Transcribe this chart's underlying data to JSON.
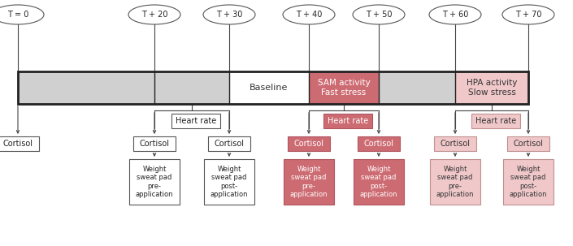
{
  "fig_width": 7.05,
  "fig_height": 3.03,
  "dpi": 100,
  "time_labels": [
    "T = 0",
    "T + 20",
    "T + 30",
    "T + 40",
    "T + 50",
    "T + 60",
    "T + 70"
  ],
  "color_gray_hatch_face": "#d0d0d0",
  "color_white": "#ffffff",
  "color_sam_dark": "#cd6b72",
  "color_sam_border": "#b05560",
  "color_hpa_light": "#f0c8ca",
  "color_hpa_border": "#c09090",
  "color_border_main": "#333333",
  "color_line": "#444444",
  "color_text": "#222222",
  "color_baseline_text": "#333333"
}
